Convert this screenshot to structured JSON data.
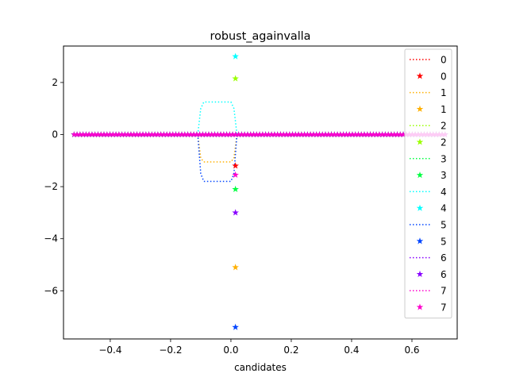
{
  "chart_data": {
    "type": "line",
    "title": "robust_againvalla",
    "xlabel": "candidates",
    "ylabel": "",
    "xlim": [
      -0.555,
      0.75
    ],
    "ylim": [
      -7.85,
      3.4
    ],
    "xticks": [
      -0.4,
      -0.2,
      0.0,
      0.2,
      0.4,
      0.6
    ],
    "xtick_labels": [
      "−0.4",
      "−0.2",
      "0.0",
      "0.2",
      "0.4",
      "0.6"
    ],
    "yticks": [
      2,
      0,
      -2,
      -4,
      -6
    ],
    "ytick_labels": [
      "2",
      "0",
      "−2",
      "−4",
      "−6"
    ],
    "grid": false,
    "legend_position": "top-right",
    "x_range": [
      -0.52,
      0.71
    ],
    "series": [
      {
        "name": "0",
        "color": "#ff0000",
        "line": {
          "x": [
            -0.52,
            0.71
          ],
          "y": [
            0.0,
            0.0
          ]
        },
        "star": {
          "x": 0.015,
          "y": -1.2
        }
      },
      {
        "name": "1",
        "color": "#ffb000",
        "line": {
          "x": [
            -0.11,
            -0.1,
            -0.09,
            0.0,
            0.01,
            0.02
          ],
          "y": [
            0.0,
            -0.9,
            -1.05,
            -1.05,
            -0.9,
            0.0
          ]
        },
        "star": {
          "x": 0.015,
          "y": -5.1
        }
      },
      {
        "name": "2",
        "color": "#9bff00",
        "line": {
          "x": [
            -0.52,
            0.71
          ],
          "y": [
            0.0,
            0.0
          ]
        },
        "star": {
          "x": 0.015,
          "y": 2.15
        }
      },
      {
        "name": "3",
        "color": "#00ff40",
        "line": {
          "x": [
            -0.52,
            0.71
          ],
          "y": [
            0.0,
            0.0
          ]
        },
        "star": {
          "x": 0.015,
          "y": -2.1
        }
      },
      {
        "name": "4",
        "color": "#00ffff",
        "line": {
          "x": [
            -0.11,
            -0.1,
            -0.09,
            0.0,
            0.01,
            0.02
          ],
          "y": [
            0.0,
            1.0,
            1.25,
            1.25,
            1.0,
            0.0
          ]
        },
        "star": {
          "x": 0.015,
          "y": 3.0
        }
      },
      {
        "name": "5",
        "color": "#0044ff",
        "line": {
          "x": [
            -0.11,
            -0.1,
            -0.09,
            0.0,
            0.01,
            0.02
          ],
          "y": [
            0.0,
            -1.5,
            -1.8,
            -1.8,
            -1.5,
            0.0
          ]
        },
        "star": {
          "x": 0.015,
          "y": -7.4
        }
      },
      {
        "name": "6",
        "color": "#8800ff",
        "line": {
          "x": [
            -0.52,
            0.71
          ],
          "y": [
            0.0,
            0.0
          ]
        },
        "star": {
          "x": 0.015,
          "y": -3.0
        }
      },
      {
        "name": "7",
        "color": "#ff00cc",
        "line": {
          "x": [
            -0.52,
            0.71
          ],
          "y": [
            0.0,
            0.0
          ]
        },
        "star": {
          "x": 0.015,
          "y": -1.55
        }
      }
    ]
  }
}
